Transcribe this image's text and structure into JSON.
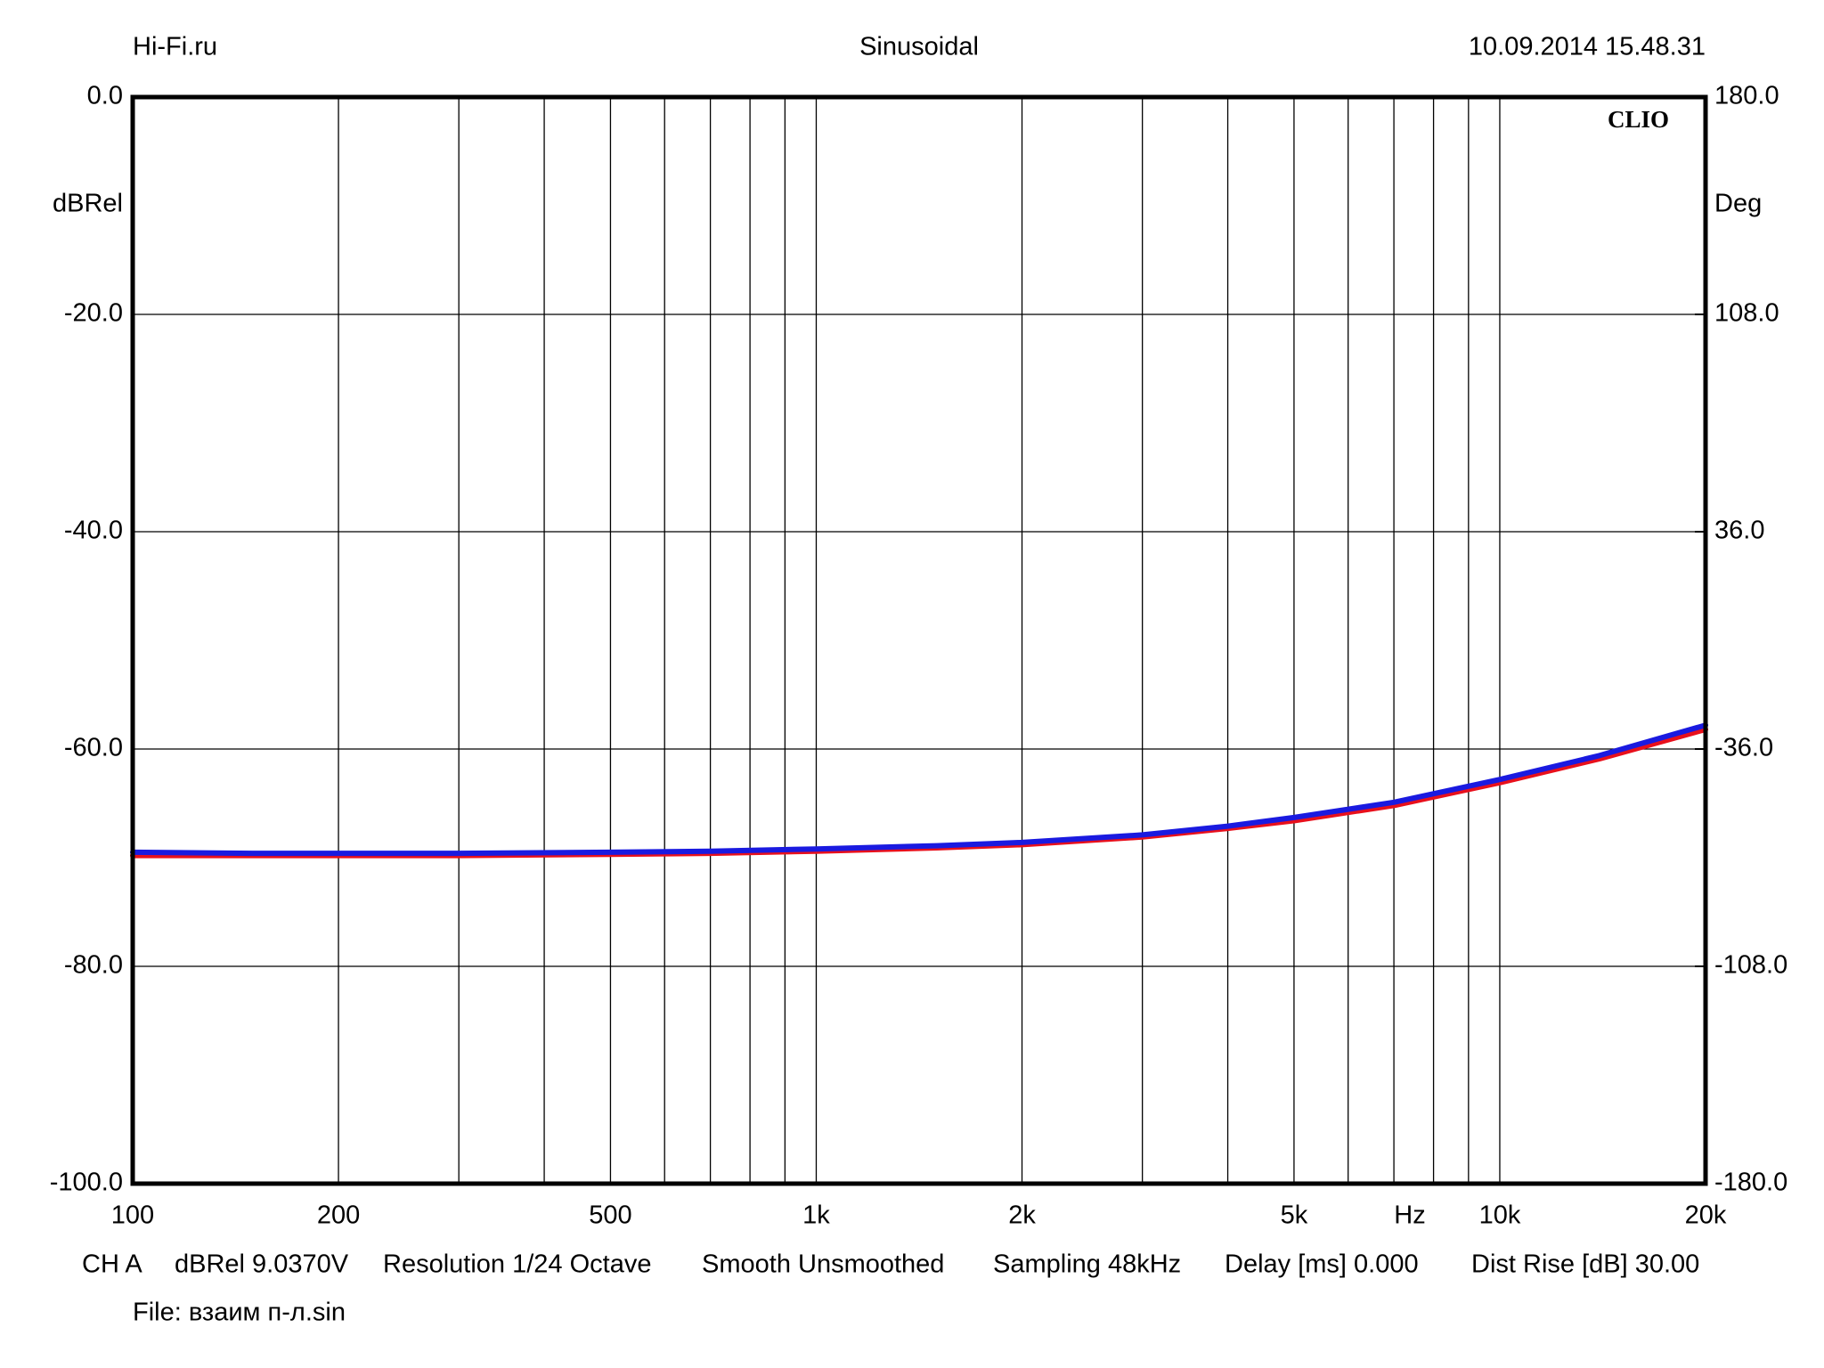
{
  "chart_data": {
    "type": "line",
    "title": "Sinusoidal",
    "header_left": "Hi-Fi.ru",
    "header_right": "10.09.2014 15.48.31",
    "brand": "CLIO",
    "ylabel": "dBRel",
    "y2label": "Deg",
    "xlabel": "Hz",
    "xscale": "log",
    "grid": true,
    "xlim": [
      100,
      20000
    ],
    "xticks": [
      100,
      200,
      500,
      {
        "value": 1000,
        "label": "1k"
      },
      {
        "value": 2000,
        "label": "2k"
      },
      {
        "value": 5000,
        "label": "5k"
      },
      {
        "value": 10000,
        "label": "10k"
      },
      {
        "value": 20000,
        "label": "20k"
      }
    ],
    "xgrid": [
      200,
      300,
      400,
      500,
      600,
      700,
      800,
      900,
      1000,
      2000,
      3000,
      4000,
      5000,
      6000,
      7000,
      8000,
      9000,
      10000
    ],
    "ylim": [
      -100,
      0
    ],
    "yticks": [
      {
        "value": 0,
        "label": "0.0"
      },
      {
        "value": -20,
        "label": "-20.0"
      },
      {
        "value": -40,
        "label": "-40.0"
      },
      {
        "value": -60,
        "label": "-60.0"
      },
      {
        "value": -80,
        "label": "-80.0"
      },
      {
        "value": -100,
        "label": "-100.0"
      }
    ],
    "y2lim": [
      -180,
      180
    ],
    "y2ticks": [
      {
        "value": 180,
        "label": "180.0"
      },
      {
        "value": 108,
        "label": "108.0"
      },
      {
        "value": 36,
        "label": "36.0"
      },
      {
        "value": -36,
        "label": "-36.0"
      },
      {
        "value": -108,
        "label": "-108.0"
      },
      {
        "value": -180,
        "label": "-180.0"
      }
    ],
    "x": [
      100,
      150,
      200,
      300,
      500,
      700,
      1000,
      1500,
      2000,
      3000,
      4000,
      5000,
      7000,
      10000,
      14000,
      20000
    ],
    "series": [
      {
        "color": "#e8101c",
        "values": [
          -69.8,
          -69.8,
          -69.8,
          -69.8,
          -69.7,
          -69.6,
          -69.4,
          -69.1,
          -68.8,
          -68.1,
          -67.3,
          -66.6,
          -65.2,
          -63.1,
          -60.9,
          -58.2
        ]
      },
      {
        "color": "#1a1ae0",
        "values": [
          -69.5,
          -69.6,
          -69.6,
          -69.6,
          -69.5,
          -69.4,
          -69.2,
          -68.9,
          -68.6,
          -67.9,
          -67.1,
          -66.3,
          -64.9,
          -62.8,
          -60.6,
          -57.8
        ]
      }
    ],
    "info": [
      "CH A",
      "dBRel 9.0370V",
      "Resolution 1/24 Octave",
      "Smooth Unsmoothed",
      "Sampling 48kHz",
      "Delay [ms] 0.000",
      "Dist Rise [dB] 30.00"
    ],
    "file": "File: взаим п-л.sin"
  }
}
